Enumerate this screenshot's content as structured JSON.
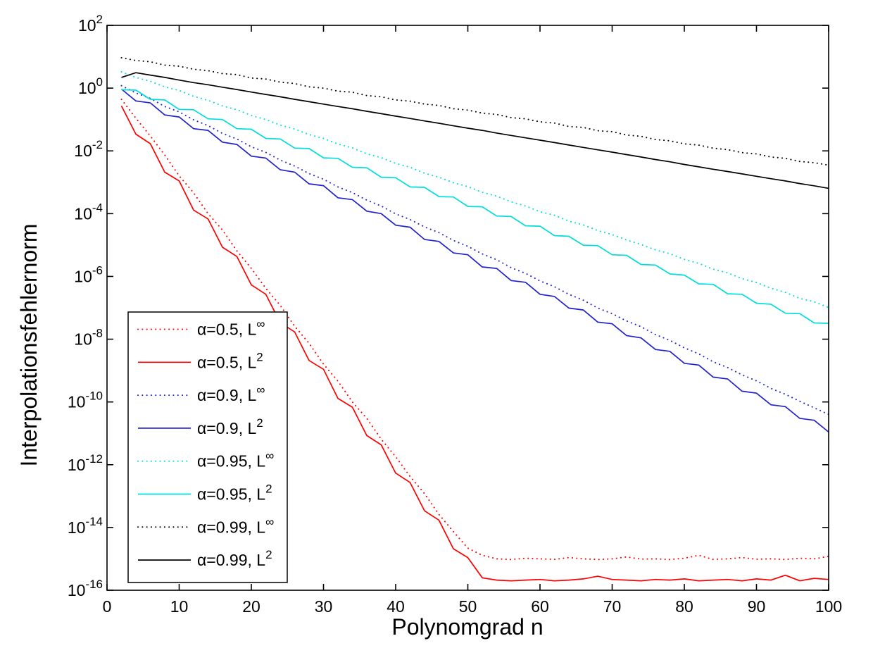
{
  "figure": {
    "background": "#ffffff"
  },
  "chart_data": {
    "type": "line",
    "title": "",
    "xlabel": "Polynomgrad n",
    "ylabel": "Interpolationsfehlernorm",
    "grid": false,
    "x_axis": {
      "min": 0,
      "max": 100,
      "tick_labels": [
        "0",
        "10",
        "20",
        "30",
        "40",
        "50",
        "60",
        "70",
        "80",
        "90",
        "100"
      ]
    },
    "y_axis": {
      "scale": "log",
      "tick_base": "10",
      "tick_exponents": [
        2,
        0,
        -2,
        -4,
        -6,
        -8,
        -10,
        -12,
        -14,
        -16
      ],
      "max_exponent": 2,
      "min_exponent": -16
    },
    "legend": {
      "position": "lower-left",
      "background": "#ffffff",
      "border_color": "#000000"
    },
    "x": [
      2,
      4,
      6,
      8,
      10,
      12,
      14,
      16,
      18,
      20,
      22,
      24,
      26,
      28,
      30,
      32,
      34,
      36,
      38,
      40,
      42,
      44,
      46,
      48,
      50,
      52,
      54,
      56,
      58,
      60,
      62,
      64,
      66,
      68,
      70,
      72,
      74,
      76,
      78,
      80,
      82,
      84,
      86,
      88,
      90,
      92,
      94,
      96,
      98,
      100
    ],
    "series": [
      {
        "name": "alpha-0.5-Linf",
        "label_base": "α=0.5, L",
        "label_sup": "∞",
        "color": "#ff0000",
        "line_style": "dotted",
        "values": [
          0.44,
          0.11,
          0.03,
          0.0074,
          0.0016,
          0.00046,
          0.0001,
          3e-05,
          6.5e-06,
          1.8e-06,
          4.2e-07,
          1.2e-07,
          2.6e-08,
          7.4e-09,
          1.6e-09,
          4.6e-10,
          1e-10,
          3e-11,
          6.5e-12,
          1.8e-12,
          4.2e-13,
          1.2e-13,
          2.6e-14,
          7.4e-15,
          2.2e-15,
          1.3e-15,
          1e-15,
          9.5e-16,
          1.05e-15,
          1e-15,
          9.6e-16,
          1.1e-15,
          1e-15,
          9.5e-16,
          1e-15,
          1.15e-15,
          9.8e-16,
          1e-15,
          9.5e-16,
          1.05e-15,
          1.3e-15,
          9.6e-16,
          1e-15,
          1.1e-15,
          9.7e-16,
          1e-15,
          9.5e-16,
          1.05e-15,
          1e-15,
          1.2e-15
        ]
      },
      {
        "name": "alpha-0.5-L2",
        "label_base": "α=0.5, L",
        "label_sup": "2",
        "color": "#ff0000",
        "line_style": "solid",
        "values": [
          0.27,
          0.034,
          0.017,
          0.0021,
          0.0011,
          0.00013,
          6.8e-05,
          8.5e-06,
          4.3e-06,
          5.4e-07,
          2.7e-07,
          3.4e-08,
          1.7e-08,
          2.1e-09,
          1.1e-09,
          1.3e-10,
          6.8e-11,
          8.5e-12,
          4.3e-12,
          5.4e-13,
          2.7e-13,
          3.4e-14,
          1.7e-14,
          2.1e-15,
          1.1e-15,
          2.5e-16,
          2.1e-16,
          2e-16,
          2.1e-16,
          2.2e-16,
          2e-16,
          2.1e-16,
          2.3e-16,
          2.8e-16,
          2.2e-16,
          2.1e-16,
          2e-16,
          2.2e-16,
          2.1e-16,
          2.3e-16,
          2e-16,
          2.1e-16,
          2.2e-16,
          2e-16,
          2.3e-16,
          2.1e-16,
          3e-16,
          2e-16,
          2.4e-16,
          2.2e-16
        ]
      },
      {
        "name": "alpha-0.9-Linf",
        "label_base": "α=0.9, L",
        "label_sup": "∞",
        "color": "#2222cc",
        "line_style": "dotted",
        "values": [
          1.2,
          0.7,
          0.47,
          0.26,
          0.175,
          0.098,
          0.064,
          0.036,
          0.024,
          0.0135,
          0.009,
          0.0051,
          0.0033,
          0.0019,
          0.00125,
          0.00071,
          0.00047,
          0.00027,
          0.000175,
          9.8e-05,
          6.5e-05,
          3.8e-05,
          2.5e-05,
          1.4e-05,
          9.1e-06,
          5.2e-06,
          3.4e-06,
          1.9e-06,
          1.25e-06,
          7.2e-07,
          4.7e-07,
          2.7e-07,
          1.75e-07,
          9.8e-08,
          6.5e-08,
          3.8e-08,
          2.5e-08,
          1.4e-08,
          9.2e-09,
          5.3e-09,
          3.4e-09,
          1.9e-09,
          1.25e-09,
          7.3e-10,
          4.7e-10,
          2.7e-10,
          1.75e-10,
          1.05e-10,
          6.5e-11,
          4e-11
        ]
      },
      {
        "name": "alpha-0.9-L2",
        "label_base": "α=0.9, L",
        "label_sup": "2",
        "color": "#2222cc",
        "line_style": "solid",
        "values": [
          0.93,
          0.39,
          0.34,
          0.14,
          0.12,
          0.051,
          0.045,
          0.019,
          0.016,
          0.0068,
          0.0059,
          0.0025,
          0.0021,
          0.00089,
          0.00078,
          0.00032,
          0.00028,
          0.00012,
          0.0001,
          4.3e-05,
          3.7e-05,
          1.5e-05,
          1.3e-05,
          5.6e-06,
          4.9e-06,
          2e-06,
          1.8e-06,
          7.4e-07,
          6.5e-07,
          2.7e-07,
          2.3e-07,
          9.8e-08,
          8.5e-08,
          3.5e-08,
          3.1e-08,
          1.3e-08,
          1.1e-08,
          4.7e-09,
          4.1e-09,
          1.7e-09,
          1.5e-09,
          6.2e-10,
          5.4e-10,
          2.2e-10,
          1.9e-10,
          8.1e-11,
          7.1e-11,
          3e-11,
          2.6e-11,
          1.1e-11
        ]
      },
      {
        "name": "alpha-0.95-Linf",
        "label_base": "α=0.95, L",
        "label_sup": "∞",
        "color": "#00dddd",
        "line_style": "dotted",
        "values": [
          3.3,
          2.2,
          1.65,
          1.1,
          0.84,
          0.55,
          0.41,
          0.27,
          0.205,
          0.135,
          0.1,
          0.066,
          0.05,
          0.033,
          0.025,
          0.0165,
          0.0125,
          0.008,
          0.0061,
          0.004,
          0.003,
          0.00195,
          0.00145,
          0.00097,
          0.00073,
          0.00048,
          0.00036,
          0.00024,
          0.000175,
          0.000115,
          8.9e-05,
          5.8e-05,
          4.35e-05,
          2.9e-05,
          2.15e-05,
          1.45e-05,
          1.04e-05,
          7e-06,
          5.3e-06,
          3.5e-06,
          2.6e-06,
          1.7e-06,
          1.3e-06,
          8.5e-07,
          6.4e-07,
          4.2e-07,
          3.1e-07,
          2e-07,
          1.55e-07,
          1.02e-07
        ]
      },
      {
        "name": "alpha-0.95-L2",
        "label_base": "α=0.95, L",
        "label_sup": "2",
        "color": "#00dddd",
        "line_style": "solid",
        "values": [
          0.89,
          0.86,
          0.44,
          0.42,
          0.21,
          0.205,
          0.105,
          0.1,
          0.051,
          0.049,
          0.025,
          0.024,
          0.0123,
          0.0119,
          0.006,
          0.0058,
          0.003,
          0.0029,
          0.00145,
          0.0014,
          0.00071,
          0.00069,
          0.00035,
          0.00034,
          0.00017,
          0.000165,
          8.4e-05,
          8.1e-05,
          4.1e-05,
          4e-05,
          2e-05,
          1.9e-05,
          9.9e-06,
          9.6e-06,
          4.9e-06,
          4.7e-06,
          2.4e-06,
          2.3e-06,
          1.2e-06,
          1.1e-06,
          5.8e-07,
          5.6e-07,
          2.8e-07,
          2.7e-07,
          1.4e-07,
          1.3e-07,
          6.7e-08,
          6.5e-08,
          3.3e-08,
          3.2e-08
        ]
      },
      {
        "name": "alpha-0.99-Linf",
        "label_base": "α=0.99, L",
        "label_sup": "∞",
        "color": "#000000",
        "line_style": "dotted",
        "values": [
          9.3,
          7.6,
          6.9,
          5.4,
          5.0,
          4.0,
          3.6,
          2.9,
          2.7,
          2.1,
          1.95,
          1.55,
          1.4,
          1.1,
          1.0,
          0.8,
          0.74,
          0.58,
          0.53,
          0.42,
          0.385,
          0.31,
          0.28,
          0.22,
          0.2,
          0.16,
          0.145,
          0.115,
          0.105,
          0.084,
          0.077,
          0.06,
          0.056,
          0.044,
          0.041,
          0.032,
          0.029,
          0.023,
          0.021,
          0.0168,
          0.0153,
          0.0122,
          0.011,
          0.0088,
          0.008,
          0.0064,
          0.0058,
          0.0046,
          0.0042,
          0.0035
        ]
      },
      {
        "name": "alpha-0.99-L2",
        "label_base": "α=0.99, L",
        "label_sup": "2",
        "color": "#000000",
        "line_style": "solid",
        "values": [
          2.2,
          3.1,
          2.6,
          2.2,
          1.8,
          1.5,
          1.28,
          1.07,
          0.9,
          0.75,
          0.63,
          0.53,
          0.44,
          0.37,
          0.31,
          0.26,
          0.22,
          0.183,
          0.153,
          0.128,
          0.108,
          0.09,
          0.076,
          0.063,
          0.053,
          0.045,
          0.037,
          0.031,
          0.026,
          0.022,
          0.0184,
          0.0154,
          0.0129,
          0.0108,
          0.0091,
          0.0076,
          0.0064,
          0.0053,
          0.0045,
          0.0037,
          0.0031,
          0.0026,
          0.0022,
          0.00185,
          0.00155,
          0.0013,
          0.0011,
          0.00091,
          0.00077,
          0.00064
        ]
      }
    ]
  }
}
